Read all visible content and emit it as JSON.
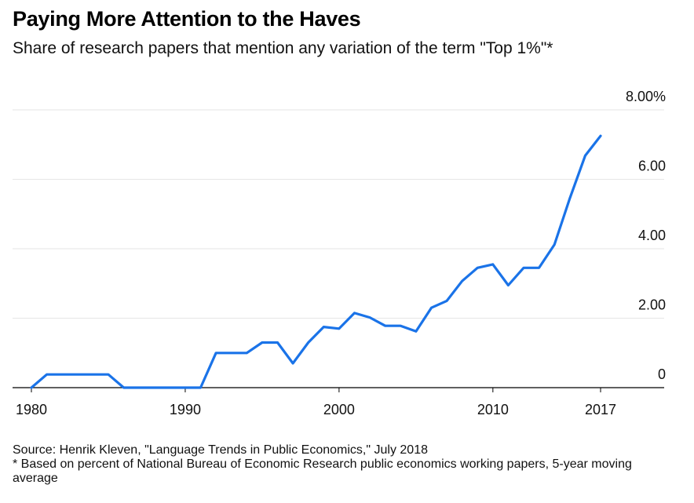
{
  "header": {
    "title": "Paying More Attention to the Haves",
    "subtitle": "Share of research papers that mention any variation of the term \"Top 1%\"*"
  },
  "footer": {
    "source": "Source: Henrik Kleven, \"Language Trends in Public Economics,\" July 2018",
    "note": "* Based on percent of National Bureau of Economic Research public economics working papers, 5-year moving average"
  },
  "colors": {
    "line": "#1a73e8",
    "grid": "#e6e6e6",
    "axis": "#000000"
  },
  "chart_data": {
    "type": "line",
    "title": "Paying More Attention to the Haves",
    "subtitle": "Share of research papers that mention any variation of the term \"Top 1%\"*",
    "xlim": [
      1980,
      2017
    ],
    "ylim": [
      0,
      8
    ],
    "y_axis_position": "right",
    "grid": "horizontal",
    "x_ticks": [
      1980,
      1990,
      2000,
      2010,
      2017
    ],
    "x_tick_labels": [
      "1980",
      "1990",
      "2000",
      "2010",
      "2017"
    ],
    "y_ticks": [
      0,
      2,
      4,
      6,
      8
    ],
    "y_tick_labels": [
      "0",
      "2.00",
      "4.00",
      "6.00",
      "8.00%"
    ],
    "series": [
      {
        "x": [
          1980,
          1981,
          1982,
          1983,
          1984,
          1985,
          1986,
          1987,
          1988,
          1989,
          1990,
          1991,
          1992,
          1993,
          1994,
          1995,
          1996,
          1997,
          1998,
          1999,
          2000,
          2001,
          2002,
          2003,
          2004,
          2005,
          2006,
          2007,
          2008,
          2009,
          2010,
          2011,
          2012,
          2013,
          2014,
          2015,
          2016,
          2017
        ],
        "values": [
          0,
          0.38,
          0.38,
          0.38,
          0.38,
          0.38,
          0,
          0,
          0,
          0,
          0,
          0,
          1.0,
          1.0,
          1.0,
          1.3,
          1.3,
          0.7,
          1.3,
          1.75,
          1.7,
          2.15,
          2.02,
          1.78,
          1.78,
          1.62,
          2.3,
          2.5,
          3.07,
          3.45,
          3.55,
          2.95,
          3.45,
          3.45,
          4.12,
          5.45,
          6.68,
          7.25
        ]
      }
    ]
  }
}
